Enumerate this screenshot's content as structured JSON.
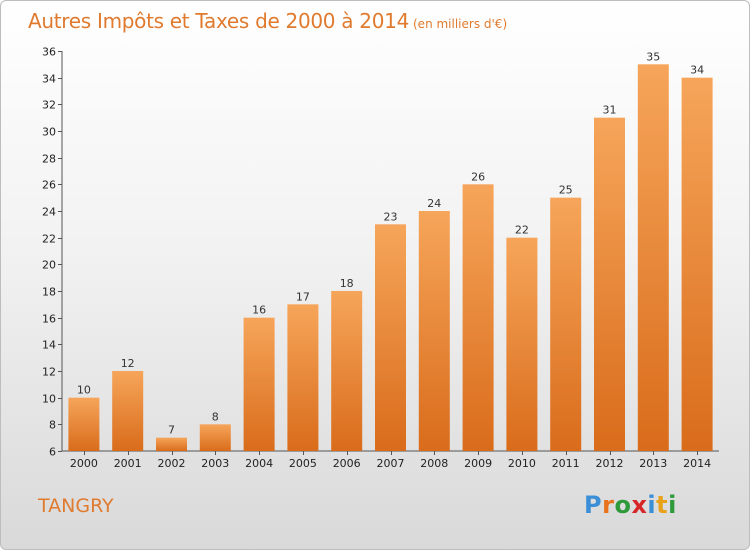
{
  "title": "Autres Impôts et Taxes de 2000 à 2014",
  "subtitle": "(en milliers d'€)",
  "commune": "TANGRY",
  "logo": {
    "letters": [
      "P",
      "r",
      "o",
      "x",
      "i",
      "t",
      "i"
    ],
    "colors": [
      "#3a8fd6",
      "#e8731a",
      "#2e9a3a",
      "#d6262a",
      "#3a8fd6",
      "#e8a21a",
      "#2e9a3a"
    ]
  },
  "colors": {
    "bar_top": "#f6a55a",
    "bar_bottom": "#d96c1b",
    "title": "#e07a2e"
  },
  "chart_data": {
    "type": "bar",
    "title": "Autres Impôts et Taxes de 2000 à 2014",
    "subtitle": "(en milliers d'€)",
    "categories": [
      "2000",
      "2001",
      "2002",
      "2003",
      "2004",
      "2005",
      "2006",
      "2007",
      "2008",
      "2009",
      "2010",
      "2011",
      "2012",
      "2013",
      "2014"
    ],
    "values": [
      10,
      12,
      7,
      8,
      16,
      17,
      18,
      23,
      24,
      26,
      22,
      25,
      31,
      35,
      34
    ],
    "ylim": [
      6,
      36
    ],
    "yticks": [
      6,
      8,
      10,
      12,
      14,
      16,
      18,
      20,
      22,
      24,
      26,
      28,
      30,
      32,
      34,
      36
    ],
    "grid": false,
    "data_labels": true
  }
}
